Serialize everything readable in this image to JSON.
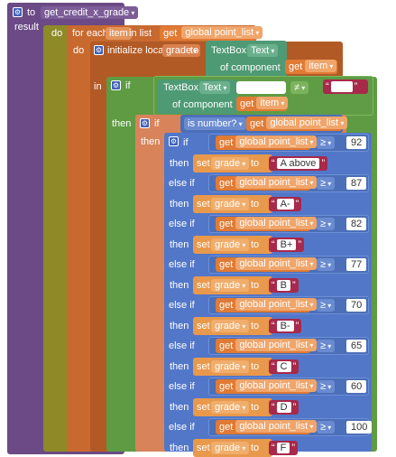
{
  "procedure": {
    "to_label": "to",
    "name": "get_credit_x_grade",
    "result_label": "result"
  },
  "do_label": "do",
  "for_each": {
    "label": "for each",
    "var": "item",
    "in_list": "in list",
    "list_get": "get",
    "list_name": "global point_list"
  },
  "init_local": {
    "label": "initialize local",
    "var": "grade",
    "to": "to",
    "comp": "TextBox.",
    "prop": "Text",
    "of_component": "of component",
    "get": "get",
    "item": "item"
  },
  "if1": {
    "in_label": "in",
    "if_label": "if",
    "comp": "TextBox.",
    "prop": "Text",
    "of_component": "of component",
    "get": "get",
    "item": "item",
    "op": "≠",
    "str": ""
  },
  "if2": {
    "then_label": "then",
    "if_label": "if",
    "is_number": "is number?",
    "get": "get",
    "list": "global point_list"
  },
  "if3": {
    "then_label": "then",
    "if_label": "if"
  },
  "chain": [
    {
      "cond_label": "if",
      "get": "get",
      "list": "global point_list",
      "op": "≥",
      "num": "92",
      "then": "then",
      "set": "set",
      "var": "grade",
      "to": "to",
      "grade": "A above"
    },
    {
      "cond_label": "else if",
      "get": "get",
      "list": "global point_list",
      "op": "≥",
      "num": "87",
      "then": "then",
      "set": "set",
      "var": "grade",
      "to": "to",
      "grade": "A-"
    },
    {
      "cond_label": "else if",
      "get": "get",
      "list": "global point_list",
      "op": "≥",
      "num": "82",
      "then": "then",
      "set": "set",
      "var": "grade",
      "to": "to",
      "grade": "B+"
    },
    {
      "cond_label": "else if",
      "get": "get",
      "list": "global point_list",
      "op": "≥",
      "num": "77",
      "then": "then",
      "set": "set",
      "var": "grade",
      "to": "to",
      "grade": "B"
    },
    {
      "cond_label": "else if",
      "get": "get",
      "list": "global point_list",
      "op": "≥",
      "num": "70",
      "then": "then",
      "set": "set",
      "var": "grade",
      "to": "to",
      "grade": "B-"
    },
    {
      "cond_label": "else if",
      "get": "get",
      "list": "global point_list",
      "op": "≥",
      "num": "65",
      "then": "then",
      "set": "set",
      "var": "grade",
      "to": "to",
      "grade": "C"
    },
    {
      "cond_label": "else if",
      "get": "get",
      "list": "global point_list",
      "op": "≥",
      "num": "60",
      "then": "then",
      "set": "set",
      "var": "grade",
      "to": "to",
      "grade": "D"
    },
    {
      "cond_label": "else if",
      "get": "get",
      "list": "global point_list",
      "op": "≥",
      "num": "100",
      "then": "then",
      "set": "set",
      "var": "grade",
      "to": "to",
      "grade": "F"
    }
  ]
}
